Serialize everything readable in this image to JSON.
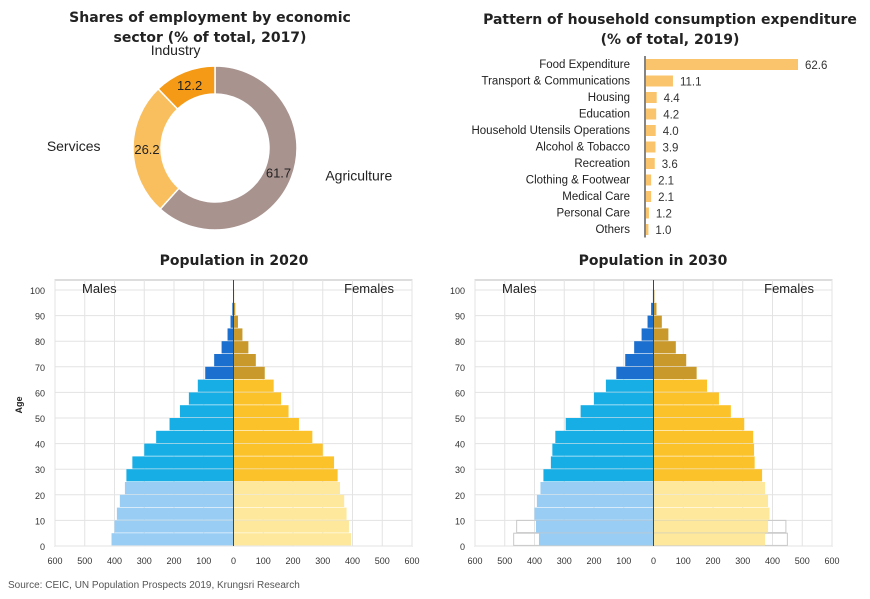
{
  "chart_data": [
    {
      "type": "pie",
      "title_line1": "Shares of employment by economic",
      "title_line2": "sector (% of total, 2017)",
      "slices": [
        {
          "label": "Agriculture",
          "value": 61.7,
          "value_text": "61.7",
          "color": "#a8938f"
        },
        {
          "label": "Services",
          "value": 26.2,
          "value_text": "26.2",
          "color": "#f9bf5f"
        },
        {
          "label": "Industry",
          "value": 12.2,
          "value_text": "12.2",
          "color": "#f49a16"
        }
      ]
    },
    {
      "type": "bar",
      "orientation": "horizontal",
      "title_line1": "Pattern of household consumption expenditure",
      "title_line2": "(% of total, 2019)",
      "categories": [
        "Food Expenditure",
        "Transport & Communications",
        "Housing",
        "Education",
        "Household Utensils Operations",
        "Alcohol & Tobacco",
        "Recreation",
        "Clothing & Footwear",
        "Medical Care",
        "Personal Care",
        "Others"
      ],
      "values": [
        62.6,
        11.1,
        4.4,
        4.2,
        4.0,
        3.9,
        3.6,
        2.1,
        2.1,
        1.2,
        1.0
      ],
      "value_labels": [
        "62.6",
        "11.1",
        "4.4",
        "4.2",
        "4.0",
        "3.9",
        "3.6",
        "2.1",
        "2.1",
        "1.2",
        "1.0"
      ],
      "color": "#f9c46b"
    },
    {
      "type": "bar",
      "orientation": "population-pyramid",
      "title": "Population in 2020",
      "left_label": "Males",
      "right_label": "Females",
      "ylabel": "Age",
      "y_ticks": [
        "0",
        "10",
        "20",
        "30",
        "40",
        "50",
        "60",
        "70",
        "80",
        "90",
        "100"
      ],
      "x_ticks": [
        "600",
        "500",
        "400",
        "300",
        "200",
        "100",
        "0",
        "100",
        "200",
        "300",
        "400",
        "500",
        "600"
      ],
      "xlim": [
        -600,
        600
      ],
      "age_groups": [
        "0-4",
        "5-9",
        "10-14",
        "15-19",
        "20-24",
        "25-29",
        "30-34",
        "35-39",
        "40-44",
        "45-49",
        "50-54",
        "55-59",
        "60-64",
        "65-69",
        "70-74",
        "75-79",
        "80-84",
        "85-89",
        "90-94",
        "95-99",
        "100+"
      ],
      "males": [
        410,
        400,
        392,
        382,
        365,
        360,
        340,
        300,
        260,
        215,
        180,
        150,
        120,
        95,
        65,
        40,
        20,
        10,
        4,
        1,
        0
      ],
      "females": [
        395,
        388,
        380,
        372,
        358,
        350,
        338,
        300,
        265,
        220,
        185,
        160,
        135,
        105,
        75,
        50,
        30,
        15,
        6,
        2,
        0
      ]
    },
    {
      "type": "bar",
      "orientation": "population-pyramid",
      "title": "Population in 2030",
      "left_label": "Males",
      "right_label": "Females",
      "y_ticks": [
        "0",
        "10",
        "20",
        "30",
        "40",
        "50",
        "60",
        "70",
        "80",
        "90",
        "100"
      ],
      "x_ticks": [
        "600",
        "500",
        "400",
        "300",
        "200",
        "100",
        "0",
        "100",
        "200",
        "300",
        "400",
        "500",
        "600"
      ],
      "xlim": [
        -600,
        600
      ],
      "age_groups": [
        "0-4",
        "5-9",
        "10-14",
        "15-19",
        "20-24",
        "25-29",
        "30-34",
        "35-39",
        "40-44",
        "45-49",
        "50-54",
        "55-59",
        "60-64",
        "65-69",
        "70-74",
        "75-79",
        "80-84",
        "85-89",
        "90-94",
        "95-99",
        "100+"
      ],
      "males": [
        385,
        395,
        400,
        392,
        380,
        370,
        345,
        340,
        330,
        295,
        245,
        200,
        160,
        125,
        95,
        65,
        40,
        20,
        8,
        2,
        0
      ],
      "females": [
        375,
        385,
        390,
        385,
        375,
        365,
        340,
        338,
        335,
        305,
        260,
        220,
        180,
        145,
        110,
        75,
        50,
        28,
        10,
        3,
        0
      ],
      "outline_males": [
        470,
        460,
        0,
        0,
        0,
        0,
        0,
        0,
        0,
        0,
        0,
        0,
        0,
        0,
        0,
        0,
        0,
        0,
        0,
        0,
        0
      ],
      "outline_females": [
        450,
        445,
        0,
        0,
        0,
        0,
        0,
        0,
        0,
        0,
        0,
        0,
        0,
        0,
        0,
        0,
        0,
        0,
        0,
        0,
        0
      ]
    }
  ],
  "source": "Source: CEIC, UN Population Prospects 2019, Krungsri Research",
  "colors": {
    "young_male": "#99cdf3",
    "young_female": "#fde89b",
    "working_male": "#17aee6",
    "working_female": "#fcc22a",
    "old_male": "#1b6fce",
    "old_female": "#c9992b",
    "outline": "#c9c9c9"
  }
}
